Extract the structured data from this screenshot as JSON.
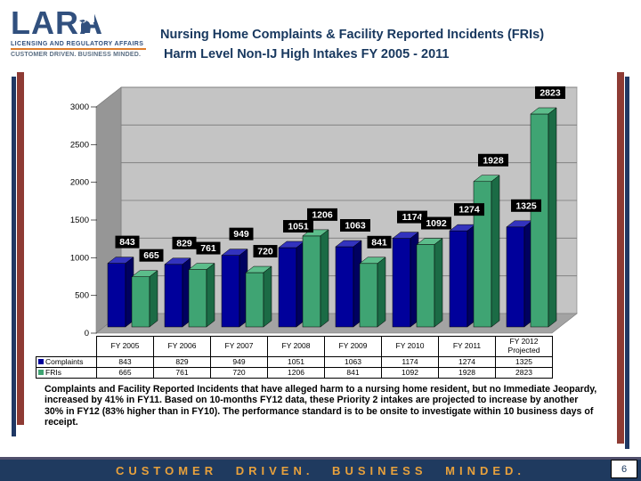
{
  "logo": {
    "word": "LARA",
    "tagline": "LICENSING AND REGULATORY AFFAIRS",
    "subline": "CUSTOMER DRIVEN. BUSINESS MINDED.",
    "navy": "#31507E",
    "orange": "#E07C2A"
  },
  "header": {
    "title_line1": "Nursing Home Complaints & Facility Reported Incidents (FRIs)",
    "title_line2": "Harm Level Non-IJ High Intakes  FY 2005 - 2011"
  },
  "chart_data": {
    "type": "bar",
    "style": "3d-clustered-column",
    "categories": [
      "FY 2005",
      "FY 2006",
      "FY 2007",
      "FY 2008",
      "FY 2009",
      "FY 2010",
      "FY 2011",
      "FY 2012 Projected"
    ],
    "series": [
      {
        "name": "Complaints",
        "values": [
          843,
          829,
          949,
          1051,
          1063,
          1174,
          1274,
          1325
        ],
        "color": "#00009B",
        "color_top": "#3333BE",
        "color_side": "#000060"
      },
      {
        "name": "FRIs",
        "values": [
          665,
          761,
          720,
          1206,
          841,
          1092,
          1928,
          2823
        ],
        "color": "#3FA473",
        "color_top": "#5CBD8B",
        "color_side": "#1B6B45"
      }
    ],
    "title": "",
    "xlabel": "",
    "ylabel": "",
    "ylim": [
      0,
      3000
    ],
    "ytick_step": 500,
    "grid": true,
    "legend_position": "data-table-left",
    "data_labels": {
      "background": "#000000",
      "text_color": "#ffffff"
    },
    "wall_color": "#C4C4C4",
    "floor_color": "#A3A3A3"
  },
  "body_text": "Complaints and Facility Reported Incidents that have alleged harm to a nursing home resident, but no Immediate Jeopardy, increased by 41% in FY11.  Based on 10-months FY12 data, these Priority 2 intakes are projected to increase by another 30% in FY12 (83% higher than in FY10).  The performance standard is to be onsite to investigate within 10 business days of receipt.",
  "footer": {
    "slogan": "CUSTOMER DRIVEN.  BUSINESS MINDED.",
    "page_number": "6",
    "bar_color": "#1F3A5F",
    "text_color": "#E8A13C"
  }
}
